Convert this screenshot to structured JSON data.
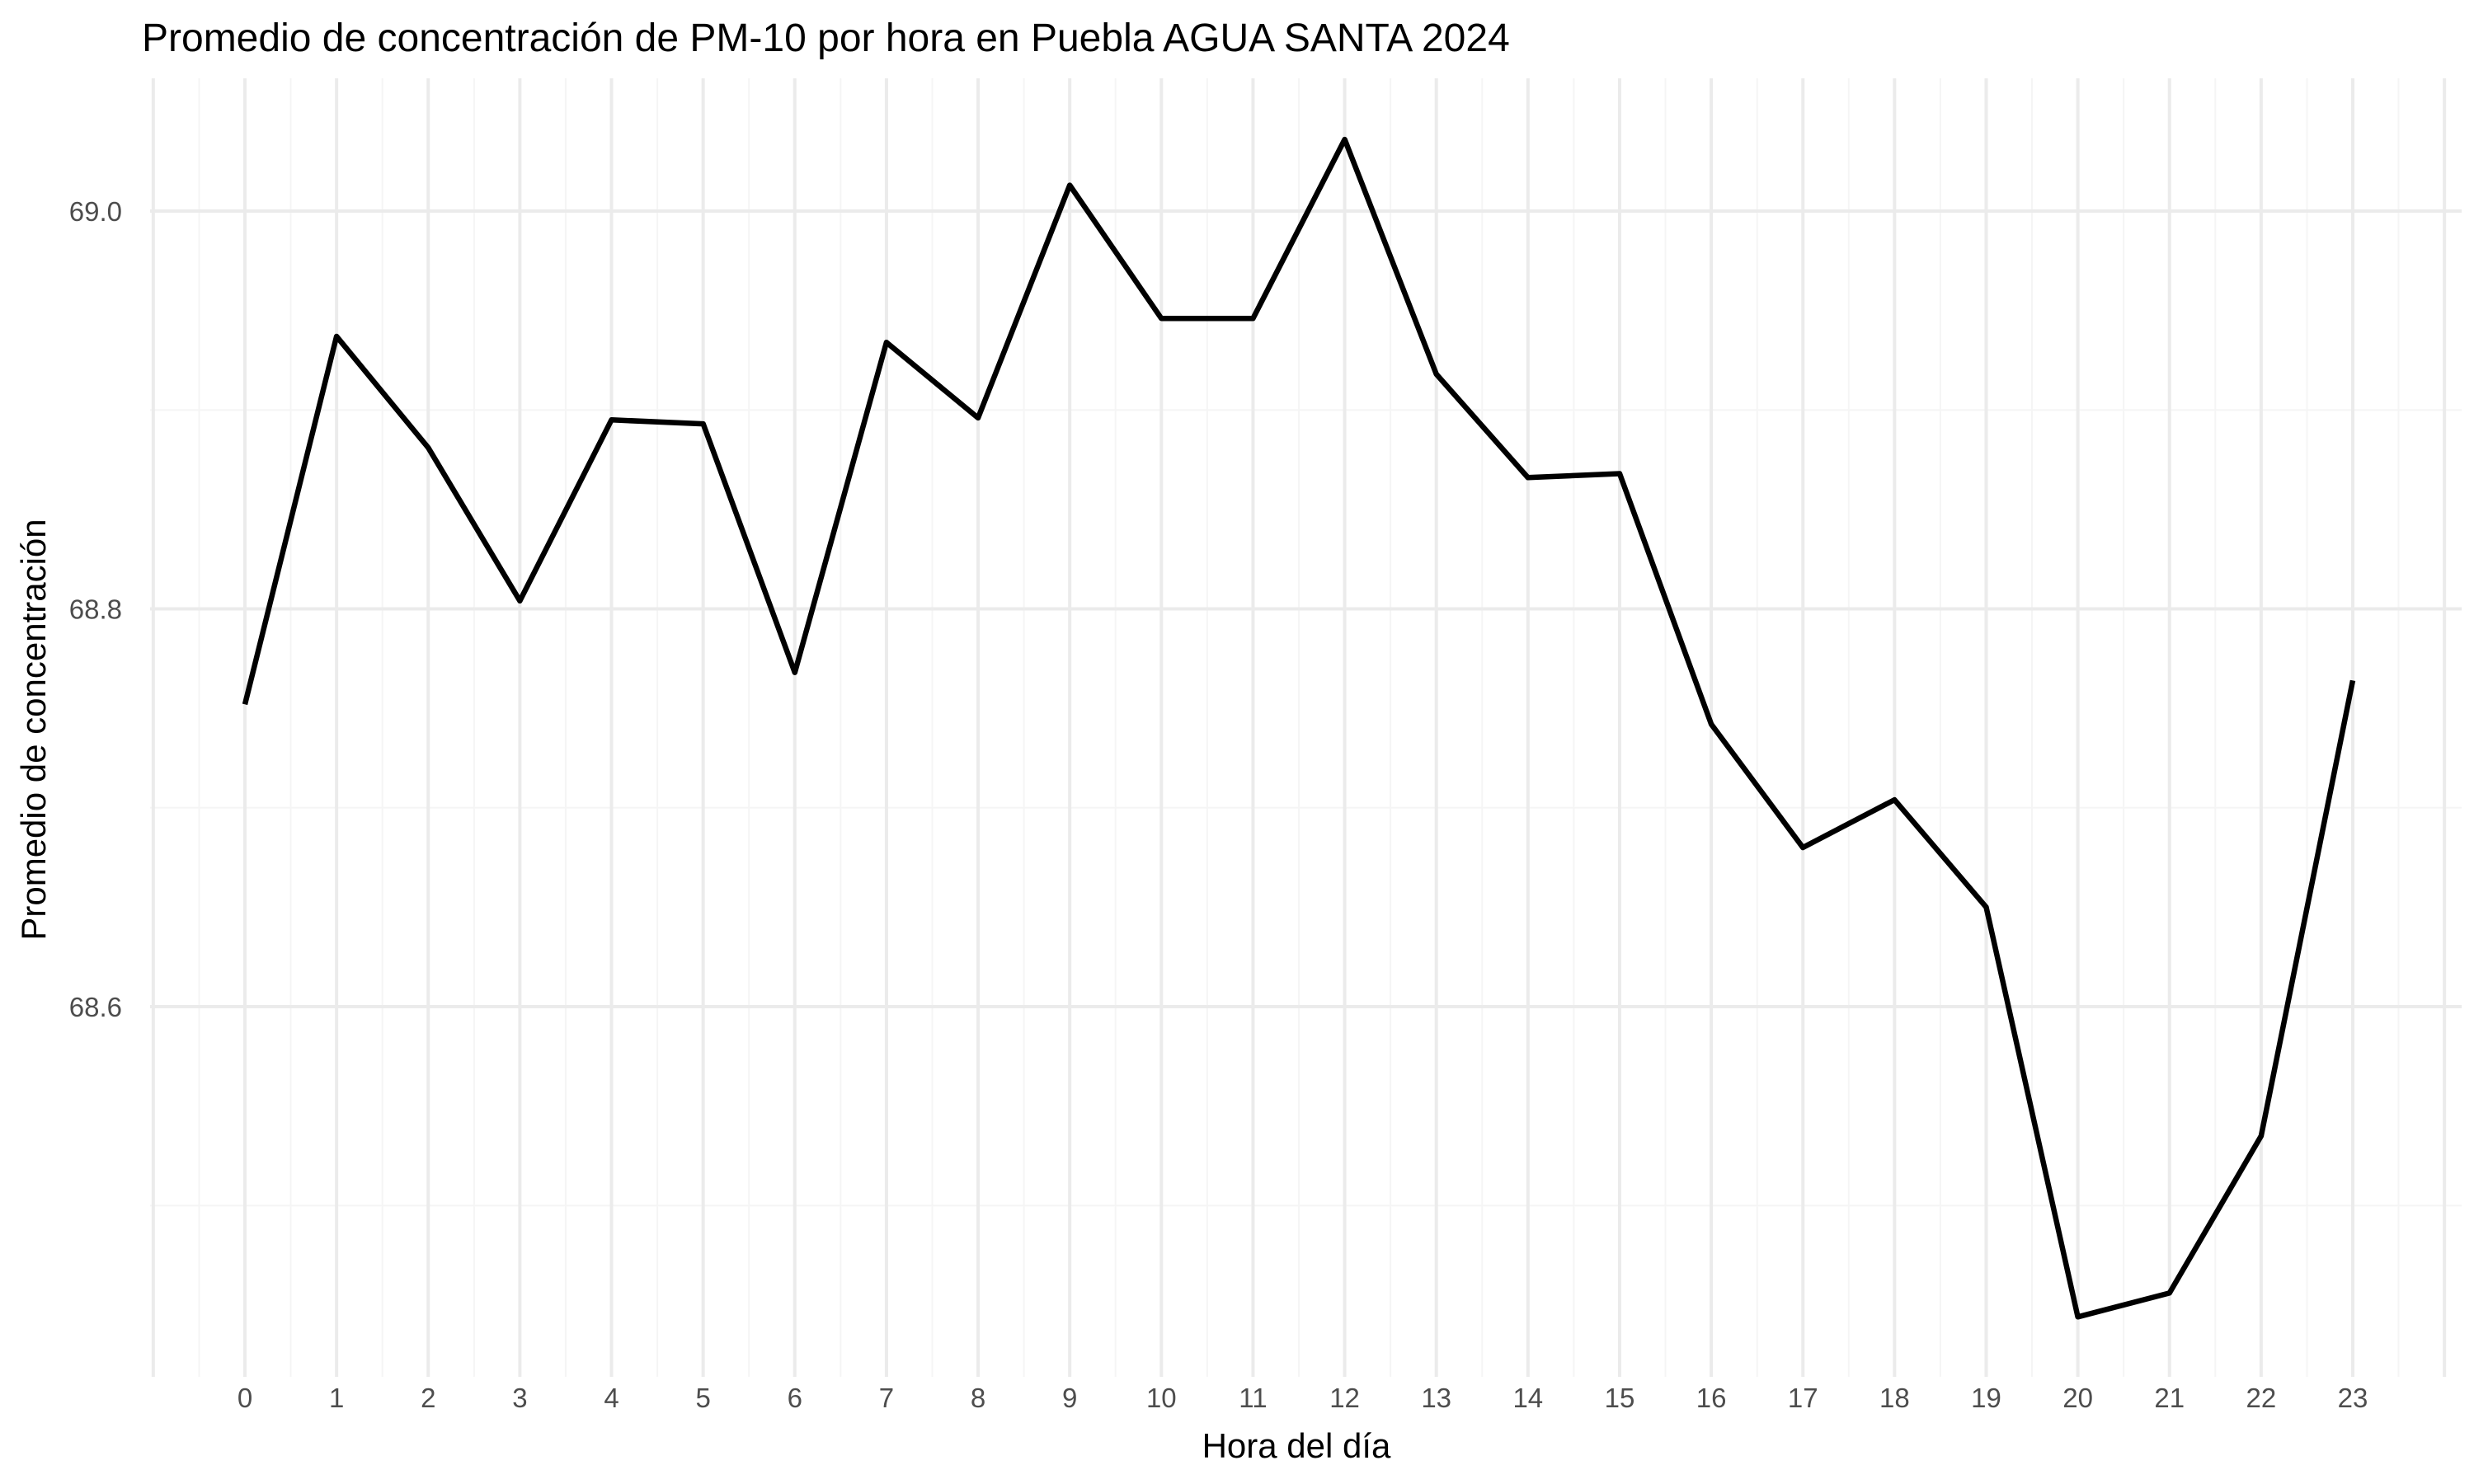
{
  "chart_data": {
    "type": "line",
    "title": "Promedio de concentración de PM-10 por hora en Puebla AGUA SANTA 2024",
    "xlabel": "Hora del día",
    "ylabel": "Promedio de concentración",
    "x": [
      0,
      1,
      2,
      3,
      4,
      5,
      6,
      7,
      8,
      9,
      10,
      11,
      12,
      13,
      14,
      15,
      16,
      17,
      18,
      19,
      20,
      21,
      22,
      23
    ],
    "series": [
      {
        "values": [
          68.752,
          68.937,
          68.881,
          68.804,
          68.895,
          68.893,
          68.768,
          68.934,
          68.896,
          69.013,
          68.946,
          68.946,
          69.036,
          68.918,
          68.866,
          68.868,
          68.742,
          68.68,
          68.704,
          68.65,
          68.444,
          68.456,
          68.535,
          68.764
        ],
        "color": "#000000"
      }
    ],
    "xlim": [
      -1,
      24
    ],
    "ylim": [
      68.43,
      69.06
    ],
    "x_ticks": [
      "0",
      "1",
      "2",
      "3",
      "4",
      "5",
      "6",
      "7",
      "8",
      "9",
      "10",
      "11",
      "12",
      "13",
      "14",
      "15",
      "16",
      "17",
      "18",
      "19",
      "20",
      "21",
      "22",
      "23"
    ],
    "y_ticks": [
      "68.6",
      "68.8",
      "69.0"
    ],
    "y_tick_values": [
      68.6,
      68.8,
      69.0
    ],
    "y_minor_values": [
      68.5,
      68.7,
      68.9
    ],
    "grid": true,
    "legend": "none"
  }
}
